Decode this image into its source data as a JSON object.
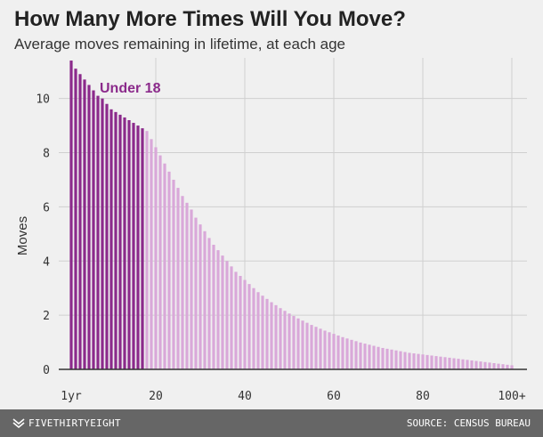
{
  "header": {
    "title": "How Many More Times Will You Move?",
    "subtitle": "Average moves remaining in lifetime, at each age"
  },
  "footer": {
    "brand": "FIVETHIRTYEIGHT",
    "source": "SOURCE: CENSUS BUREAU"
  },
  "colors": {
    "highlight": "#8b2a8b",
    "base": "#d9a8d9",
    "background": "#f0f0f0",
    "grid": "#cfcfcf",
    "axis": "#333333",
    "footer": "#666666"
  },
  "chart_data": {
    "type": "bar",
    "title": "How Many More Times Will You Move?",
    "subtitle": "Average moves remaining in lifetime, at each age",
    "xlabel": "",
    "ylabel": "Moves",
    "ylim": [
      0,
      11.5
    ],
    "xlim": [
      1,
      100
    ],
    "yticks": [
      0,
      2,
      4,
      6,
      8,
      10
    ],
    "xtick_values": [
      1,
      20,
      40,
      60,
      80,
      100
    ],
    "xtick_labels": [
      "1yr",
      "20",
      "40",
      "60",
      "80",
      "100+"
    ],
    "grid": true,
    "annotation": {
      "text": "Under 18",
      "highlight_max_age": 17
    },
    "categories": [
      1,
      2,
      3,
      4,
      5,
      6,
      7,
      8,
      9,
      10,
      11,
      12,
      13,
      14,
      15,
      16,
      17,
      18,
      19,
      20,
      21,
      22,
      23,
      24,
      25,
      26,
      27,
      28,
      29,
      30,
      31,
      32,
      33,
      34,
      35,
      36,
      37,
      38,
      39,
      40,
      41,
      42,
      43,
      44,
      45,
      46,
      47,
      48,
      49,
      50,
      51,
      52,
      53,
      54,
      55,
      56,
      57,
      58,
      59,
      60,
      61,
      62,
      63,
      64,
      65,
      66,
      67,
      68,
      69,
      70,
      71,
      72,
      73,
      74,
      75,
      76,
      77,
      78,
      79,
      80,
      81,
      82,
      83,
      84,
      85,
      86,
      87,
      88,
      89,
      90,
      91,
      92,
      93,
      94,
      95,
      96,
      97,
      98,
      99,
      100
    ],
    "values": [
      11.4,
      11.1,
      10.9,
      10.7,
      10.5,
      10.3,
      10.1,
      10.0,
      9.8,
      9.6,
      9.5,
      9.4,
      9.3,
      9.2,
      9.1,
      9.0,
      8.9,
      8.8,
      8.5,
      8.2,
      7.9,
      7.6,
      7.3,
      7.0,
      6.7,
      6.4,
      6.15,
      5.9,
      5.6,
      5.35,
      5.1,
      4.85,
      4.6,
      4.4,
      4.2,
      4.0,
      3.8,
      3.6,
      3.45,
      3.3,
      3.15,
      3.0,
      2.85,
      2.72,
      2.6,
      2.48,
      2.37,
      2.26,
      2.16,
      2.06,
      1.97,
      1.88,
      1.8,
      1.72,
      1.64,
      1.57,
      1.5,
      1.43,
      1.37,
      1.31,
      1.25,
      1.19,
      1.14,
      1.09,
      1.04,
      0.99,
      0.95,
      0.91,
      0.87,
      0.83,
      0.79,
      0.76,
      0.73,
      0.7,
      0.67,
      0.64,
      0.61,
      0.59,
      0.57,
      0.55,
      0.53,
      0.51,
      0.49,
      0.47,
      0.45,
      0.43,
      0.41,
      0.39,
      0.37,
      0.35,
      0.33,
      0.31,
      0.29,
      0.27,
      0.25,
      0.23,
      0.21,
      0.19,
      0.17,
      0.15
    ]
  }
}
